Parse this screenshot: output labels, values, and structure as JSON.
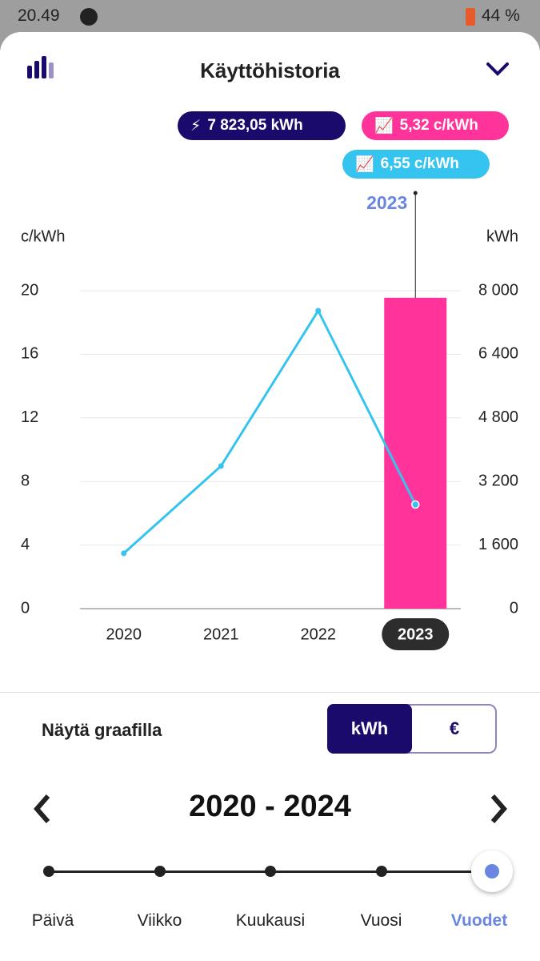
{
  "status_bar": {
    "time": "20.49",
    "battery": "44 %"
  },
  "header": {
    "title": "Käyttöhistoria"
  },
  "summary": {
    "consumption": "7 823,05 kWh",
    "price_a": "5,32 c/kWh",
    "price_b": "6,55 c/kWh"
  },
  "chart_data": {
    "type": "bar-line",
    "highlight_label": "2023",
    "y_label": "c/kWh",
    "y2_label": "kWh",
    "categories": [
      "2020",
      "2021",
      "2022",
      "2023"
    ],
    "selected_index": 3,
    "series": [
      {
        "type": "bar",
        "axis": "y2",
        "color": "#ff3399",
        "values": [
          null,
          null,
          null,
          7823.05
        ]
      },
      {
        "type": "line",
        "color": "#35c3f0",
        "values": [
          3.48,
          8.97,
          18.74,
          6.55
        ]
      }
    ],
    "ylim": [
      0,
      20
    ],
    "yticks": [
      0,
      4,
      8,
      12,
      16,
      20
    ],
    "y2lim": [
      0,
      8000
    ],
    "y2ticks": [
      0,
      {
        "value": 1600,
        "label": "1 600"
      },
      {
        "value": 3200,
        "label": "3 200"
      },
      {
        "value": 4800,
        "label": "4 800"
      },
      {
        "value": 6400,
        "label": "6 400"
      },
      {
        "value": 8000,
        "label": "8 000"
      }
    ],
    "grid": true
  },
  "controls": {
    "show_label": "Näytä graafilla",
    "toggle": [
      "kWh",
      "€"
    ],
    "toggle_selected": 0,
    "period": "2020 - 2024",
    "scale": [
      "Päivä",
      "Viikko",
      "Kuukausi",
      "Vuosi",
      "Vuodet"
    ],
    "scale_selected": 4
  }
}
